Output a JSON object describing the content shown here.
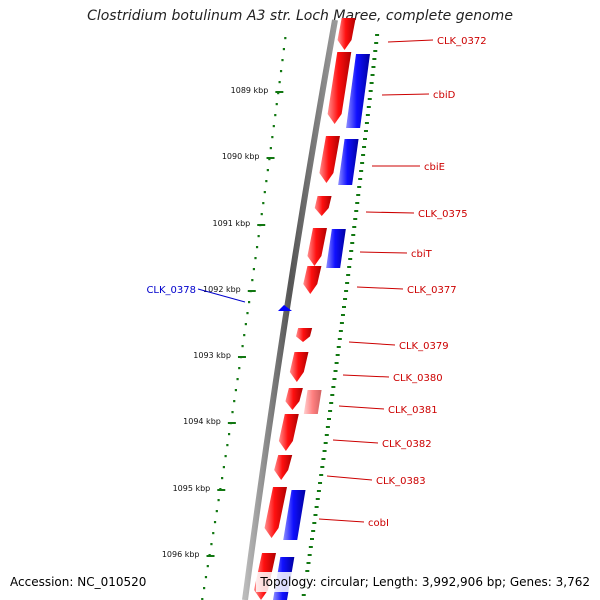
{
  "title": "Clostridium botulinum A3 str. Loch Maree, complete genome",
  "footer": {
    "accession": "Accession: NC_010520",
    "topology": "Topology: circular; Length: 3,992,906 bp; Genes: 3,762"
  },
  "colors": {
    "forward_gene": "#ff2020",
    "reverse_gene": "#2020ff",
    "rna_gene": "#ff8080",
    "gene_label": "#cc0000",
    "selected_label": "#0000cc",
    "tick": "#117711",
    "backbone": "#777777"
  },
  "kbp_ticks": [
    "1089 kbp",
    "1090 kbp",
    "1091 kbp",
    "1092 kbp",
    "1093 kbp",
    "1094 kbp",
    "1095 kbp",
    "1096 kbp"
  ],
  "gene_labels": [
    {
      "text": "CLK_0372",
      "side": "right"
    },
    {
      "text": "cbiD",
      "side": "right"
    },
    {
      "text": "cbiE",
      "side": "right"
    },
    {
      "text": "CLK_0375",
      "side": "right"
    },
    {
      "text": "cbiT",
      "side": "right"
    },
    {
      "text": "CLK_0377",
      "side": "right"
    },
    {
      "text": "CLK_0378",
      "side": "left"
    },
    {
      "text": "CLK_0379",
      "side": "right"
    },
    {
      "text": "CLK_0380",
      "side": "right"
    },
    {
      "text": "CLK_0381",
      "side": "right"
    },
    {
      "text": "CLK_0382",
      "side": "right"
    },
    {
      "text": "CLK_0383",
      "side": "right"
    },
    {
      "text": "cobI",
      "side": "right"
    }
  ]
}
